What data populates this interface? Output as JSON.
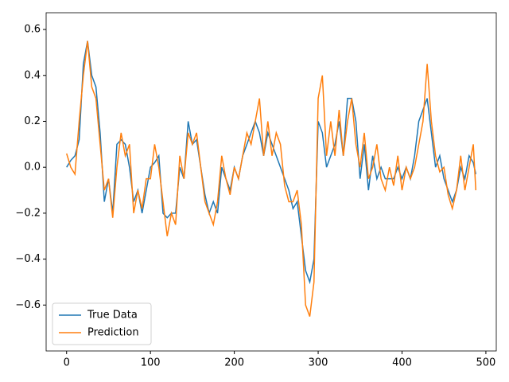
{
  "chart_data": {
    "type": "line",
    "x": [
      0,
      5,
      10,
      15,
      20,
      25,
      30,
      35,
      40,
      45,
      50,
      55,
      60,
      65,
      70,
      75,
      80,
      85,
      90,
      95,
      100,
      105,
      110,
      115,
      120,
      125,
      130,
      135,
      140,
      145,
      150,
      155,
      160,
      165,
      170,
      175,
      180,
      185,
      190,
      195,
      200,
      205,
      210,
      215,
      220,
      225,
      230,
      235,
      240,
      245,
      250,
      255,
      260,
      265,
      270,
      275,
      280,
      285,
      290,
      295,
      300,
      305,
      310,
      315,
      320,
      325,
      330,
      335,
      340,
      345,
      350,
      355,
      360,
      365,
      370,
      375,
      380,
      385,
      390,
      395,
      400,
      405,
      410,
      415,
      420,
      425,
      430,
      435,
      440,
      445,
      450,
      455,
      460,
      465,
      470,
      475,
      480,
      485,
      488
    ],
    "series": [
      {
        "name": "True Data",
        "color": "#1f77b4",
        "values": [
          0.0,
          0.03,
          0.05,
          0.12,
          0.45,
          0.55,
          0.4,
          0.35,
          0.15,
          -0.15,
          -0.05,
          -0.2,
          0.1,
          0.12,
          0.1,
          0.0,
          -0.15,
          -0.1,
          -0.2,
          -0.1,
          0.0,
          0.02,
          0.05,
          -0.2,
          -0.22,
          -0.2,
          -0.2,
          0.0,
          -0.05,
          0.2,
          0.1,
          0.12,
          0.0,
          -0.12,
          -0.2,
          -0.15,
          -0.2,
          0.0,
          -0.05,
          -0.1,
          0.0,
          -0.05,
          0.05,
          0.1,
          0.15,
          0.2,
          0.15,
          0.05,
          0.15,
          0.1,
          0.05,
          0.0,
          -0.05,
          -0.1,
          -0.18,
          -0.15,
          -0.3,
          -0.45,
          -0.5,
          -0.4,
          0.2,
          0.15,
          0.0,
          0.05,
          0.1,
          0.2,
          0.05,
          0.3,
          0.3,
          0.2,
          -0.05,
          0.1,
          -0.1,
          0.05,
          -0.05,
          0.0,
          -0.05,
          -0.05,
          -0.05,
          0.0,
          -0.05,
          0.0,
          -0.05,
          0.05,
          0.2,
          0.25,
          0.3,
          0.15,
          0.0,
          0.05,
          -0.05,
          -0.1,
          -0.15,
          -0.1,
          0.0,
          -0.05,
          0.05,
          0.02,
          -0.03
        ]
      },
      {
        "name": "Prediction",
        "color": "#ff7f0e",
        "values": [
          0.06,
          0.0,
          -0.03,
          0.2,
          0.4,
          0.55,
          0.35,
          0.3,
          0.1,
          -0.1,
          -0.05,
          -0.22,
          0.0,
          0.15,
          0.05,
          0.1,
          -0.2,
          -0.1,
          -0.18,
          -0.05,
          -0.05,
          0.1,
          0.0,
          -0.15,
          -0.3,
          -0.2,
          -0.25,
          0.05,
          -0.05,
          0.15,
          0.1,
          0.15,
          0.0,
          -0.15,
          -0.2,
          -0.25,
          -0.15,
          0.05,
          -0.05,
          -0.12,
          0.0,
          -0.05,
          0.05,
          0.15,
          0.1,
          0.2,
          0.3,
          0.05,
          0.2,
          0.05,
          0.15,
          0.1,
          -0.08,
          -0.15,
          -0.15,
          -0.1,
          -0.25,
          -0.6,
          -0.65,
          -0.5,
          0.3,
          0.4,
          0.05,
          0.2,
          0.05,
          0.25,
          0.05,
          0.2,
          0.3,
          0.1,
          0.0,
          0.15,
          -0.05,
          0.0,
          0.1,
          -0.05,
          -0.1,
          0.0,
          -0.08,
          0.05,
          -0.1,
          0.0,
          -0.05,
          0.0,
          0.1,
          0.2,
          0.45,
          0.2,
          0.05,
          -0.02,
          0.0,
          -0.12,
          -0.18,
          -0.1,
          0.05,
          -0.1,
          0.0,
          0.1,
          -0.1
        ]
      }
    ],
    "xlim": [
      -24.4,
      512.4
    ],
    "ylim": [
      -0.8,
      0.673
    ],
    "xticks": [
      0,
      100,
      200,
      300,
      400,
      500
    ],
    "yticks": [
      {
        "value": -0.6,
        "label": "−0.6"
      },
      {
        "value": -0.4,
        "label": "−0.4"
      },
      {
        "value": -0.2,
        "label": "−0.2"
      },
      {
        "value": 0,
        "label": "0.0"
      },
      0.2,
      0.4,
      0.6
    ],
    "legend": "lower left"
  }
}
